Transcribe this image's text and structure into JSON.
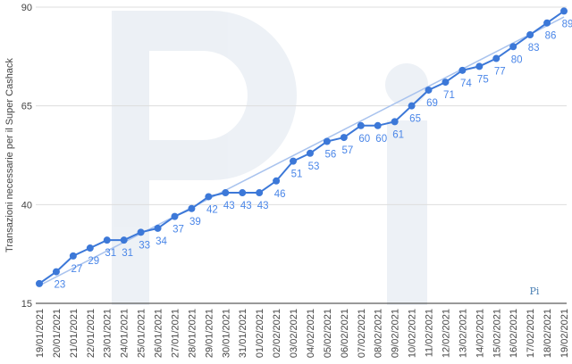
{
  "chart_data": {
    "type": "line",
    "y_label": "Transazioni necessarie per il Super Cashack",
    "logo": "Pi",
    "categories": [
      "19/01/2021",
      "20/01/2021",
      "21/01/2021",
      "22/01/2021",
      "23/01/2021",
      "24/01/2021",
      "25/01/2021",
      "26/01/2021",
      "27/01/2021",
      "28/01/2021",
      "29/01/2021",
      "30/01/2021",
      "31/01/2021",
      "01/02/2021",
      "02/02/2021",
      "03/02/2021",
      "04/02/2021",
      "05/02/2021",
      "06/02/2021",
      "07/02/2021",
      "08/02/2021",
      "09/02/2021",
      "10/02/2021",
      "11/02/2021",
      "12/02/2021",
      "13/02/2021",
      "14/02/2021",
      "15/02/2021",
      "16/02/2021",
      "17/02/2021",
      "18/02/2021",
      "19/02/2021"
    ],
    "series": [
      {
        "name": "Transazioni",
        "color": "#3c78d8",
        "values": [
          20,
          23,
          27,
          29,
          31,
          31,
          33,
          34,
          37,
          39,
          42,
          43,
          43,
          43,
          46,
          51,
          53,
          56,
          57,
          60,
          60,
          61,
          65,
          69,
          71,
          74,
          75,
          77,
          80,
          83,
          86,
          89
        ],
        "value_labels": [
          null,
          "23",
          "27",
          "29",
          "31",
          "31",
          "33",
          "34",
          "37",
          "39",
          "42",
          "43",
          "43",
          "43",
          "46",
          "51",
          "53",
          "56",
          "57",
          "60",
          "60",
          "61",
          "65",
          "69",
          "71",
          "74",
          "75",
          "77",
          "80",
          "83",
          "86",
          "89"
        ]
      }
    ],
    "trendline": {
      "color": "#a9c3ee",
      "values": [
        19.5,
        87.5
      ]
    },
    "ylim": [
      15,
      90
    ],
    "yticks": [
      15,
      40,
      65,
      90
    ],
    "grid": true
  }
}
